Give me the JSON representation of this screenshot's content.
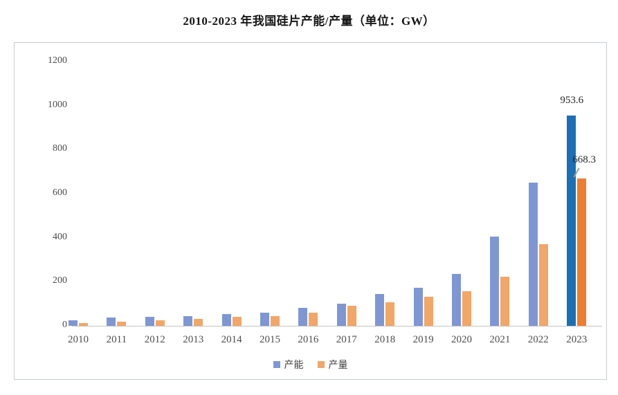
{
  "chart_data": {
    "type": "bar",
    "title": "2010-2023 年我国硅片产能/产量（单位：GW）",
    "unit": "GW",
    "categories": [
      "2010",
      "2011",
      "2012",
      "2013",
      "2014",
      "2015",
      "2016",
      "2017",
      "2018",
      "2019",
      "2020",
      "2021",
      "2022",
      "2023"
    ],
    "series": [
      {
        "name": "产能",
        "color": "#7E97D4",
        "highlight_color": "#1B6FB5",
        "values": [
          26,
          37,
          40,
          44,
          52,
          60,
          82,
          102,
          145,
          173,
          235,
          405,
          650,
          953.6
        ]
      },
      {
        "name": "产量",
        "color": "#F2A668",
        "highlight_color": "#ED7D31",
        "values": [
          13,
          20,
          25,
          31,
          40,
          44,
          60,
          92,
          107,
          132,
          158,
          223,
          372,
          668.3
        ]
      }
    ],
    "highlight_index": 13,
    "data_labels": [
      {
        "series": 0,
        "index": 13,
        "text": "953.6",
        "leader_line": false
      },
      {
        "series": 1,
        "index": 13,
        "text": "668.3",
        "leader_line": true
      }
    ],
    "y_axis": {
      "min": 0,
      "max": 1200,
      "ticks": [
        0,
        200,
        400,
        600,
        800,
        1000,
        1200
      ]
    },
    "grid": false,
    "legend_position": "bottom"
  }
}
